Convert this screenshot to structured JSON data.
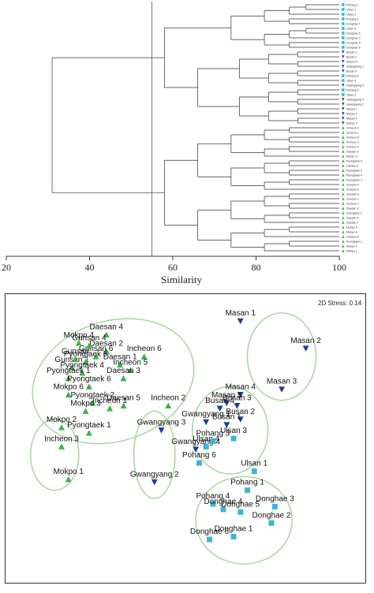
{
  "dendrogram": {
    "xlabel": "Similarity",
    "xticks": [
      20,
      40,
      60,
      80,
      100
    ],
    "xlim": [
      20,
      100
    ],
    "cut_line": 55,
    "leaves": [
      {
        "label": "Pohang 1",
        "group": "Pohang"
      },
      {
        "label": "Ulsan 1",
        "group": "Ulsan"
      },
      {
        "label": "Ulsan 2",
        "group": "Ulsan"
      },
      {
        "label": "Pohang 2",
        "group": "Pohang"
      },
      {
        "label": "Donghae 1",
        "group": "Donghae"
      },
      {
        "label": "Ulsan 3",
        "group": "Ulsan"
      },
      {
        "label": "Donghae 5",
        "group": "Donghae"
      },
      {
        "label": "Donghae 3",
        "group": "Donghae"
      },
      {
        "label": "Donghae 4",
        "group": "Donghae"
      },
      {
        "label": "Donghae 6",
        "group": "Donghae"
      },
      {
        "label": "Busan 1",
        "group": "Busan"
      },
      {
        "label": "Busan 2",
        "group": "Busan"
      },
      {
        "label": "Masan 5",
        "group": "Masan"
      },
      {
        "label": "Gwangyang 1",
        "group": "Gwangyang"
      },
      {
        "label": "Busan 4",
        "group": "Busan"
      },
      {
        "label": "Pohang 6",
        "group": "Pohang"
      },
      {
        "label": "Ulsan 4",
        "group": "Ulsan"
      },
      {
        "label": "Gwangyang 4",
        "group": "Gwangyang"
      },
      {
        "label": "Pohang 3",
        "group": "Pohang"
      },
      {
        "label": "Ulsan 3",
        "group": "Ulsan"
      },
      {
        "label": "Gwangyang 3",
        "group": "Gwangyang"
      },
      {
        "label": "Gwangyang 2",
        "group": "Gwangyang"
      },
      {
        "label": "Masan 1",
        "group": "Masan"
      },
      {
        "label": "Masan 2",
        "group": "Masan"
      },
      {
        "label": "Masan 4",
        "group": "Masan"
      },
      {
        "label": "Masan 3",
        "group": "Masan"
      },
      {
        "label": "Incheon 2",
        "group": "Incheon"
      },
      {
        "label": "Incheon 1",
        "group": "Incheon"
      },
      {
        "label": "Incheon 6",
        "group": "Incheon"
      },
      {
        "label": "Incheon 4",
        "group": "Incheon"
      },
      {
        "label": "Incheon 5",
        "group": "Incheon"
      },
      {
        "label": "Daesan 5",
        "group": "Daesan"
      },
      {
        "label": "Mokpo 3",
        "group": "Mokpo"
      },
      {
        "label": "Pyongtaek 6",
        "group": "Pyongtaek"
      },
      {
        "label": "Daesan 6",
        "group": "Daesan"
      },
      {
        "label": "Pyongtaek 5",
        "group": "Pyongtaek"
      },
      {
        "label": "Pyongtaek 4",
        "group": "Pyongtaek"
      },
      {
        "label": "Pyongtaek 3",
        "group": "Pyongtaek"
      },
      {
        "label": "Gunsan 4",
        "group": "Gunsan"
      },
      {
        "label": "Gunsan 3",
        "group": "Gunsan"
      },
      {
        "label": "Gunsan 5",
        "group": "Gunsan"
      },
      {
        "label": "Gunsan 1",
        "group": "Gunsan"
      },
      {
        "label": "Gunsan 2",
        "group": "Gunsan"
      },
      {
        "label": "Daesan 3",
        "group": "Daesan"
      },
      {
        "label": "Pyongtaek 2",
        "group": "Pyongtaek"
      },
      {
        "label": "Daesan 4",
        "group": "Daesan"
      },
      {
        "label": "Daesan 2",
        "group": "Daesan"
      },
      {
        "label": "Mokpo 4",
        "group": "Mokpo"
      },
      {
        "label": "Mokpo 6",
        "group": "Mokpo"
      },
      {
        "label": "Gunsan 6",
        "group": "Gunsan"
      },
      {
        "label": "Pyongtaek 1",
        "group": "Pyongtaek"
      },
      {
        "label": "Mokpo 2",
        "group": "Mokpo"
      },
      {
        "label": "Mokpo 1",
        "group": "Mokpo"
      }
    ]
  },
  "mds": {
    "stress_label": "2D Stress: 0.14",
    "colors": {
      "north": "#3cb34a",
      "south": "#1f3d99",
      "east": "#3ab7d4",
      "ellipse": "#9fd59a"
    },
    "points": [
      {
        "label": "Masan 1",
        "x": 0.66,
        "y": 0.93,
        "shape": "south"
      },
      {
        "label": "Masan 2",
        "x": 0.85,
        "y": 0.83,
        "shape": "south"
      },
      {
        "label": "Masan 3",
        "x": 0.78,
        "y": 0.68,
        "shape": "south"
      },
      {
        "label": "Masan 4",
        "x": 0.66,
        "y": 0.66,
        "shape": "south"
      },
      {
        "label": "Masan 5",
        "x": 0.62,
        "y": 0.63,
        "shape": "south"
      },
      {
        "label": "Busan 3",
        "x": 0.65,
        "y": 0.62,
        "shape": "south"
      },
      {
        "label": "Busan 4",
        "x": 0.6,
        "y": 0.61,
        "shape": "south"
      },
      {
        "label": "Busan 2",
        "x": 0.66,
        "y": 0.57,
        "shape": "south"
      },
      {
        "label": "Busan 1",
        "x": 0.62,
        "y": 0.55,
        "shape": "south"
      },
      {
        "label": "Gwangyang 1",
        "x": 0.56,
        "y": 0.56,
        "shape": "south"
      },
      {
        "label": "Gwangyang 3",
        "x": 0.43,
        "y": 0.53,
        "shape": "south"
      },
      {
        "label": "Gwangyang 4",
        "x": 0.53,
        "y": 0.46,
        "shape": "south"
      },
      {
        "label": "Gwangyang 2",
        "x": 0.41,
        "y": 0.34,
        "shape": "south"
      },
      {
        "label": "Ulsan 3",
        "x": 0.64,
        "y": 0.5,
        "shape": "east"
      },
      {
        "label": "Ulsan 4",
        "x": 0.56,
        "y": 0.47,
        "shape": "east"
      },
      {
        "label": "Pohang 3",
        "x": 0.58,
        "y": 0.49,
        "shape": "east"
      },
      {
        "label": "Pohang 6",
        "x": 0.54,
        "y": 0.41,
        "shape": "east"
      },
      {
        "label": "Ulsan 1",
        "x": 0.7,
        "y": 0.38,
        "shape": "east"
      },
      {
        "label": "Pohang 1",
        "x": 0.68,
        "y": 0.31,
        "shape": "east"
      },
      {
        "label": "Pohang 4",
        "x": 0.58,
        "y": 0.26,
        "shape": "east"
      },
      {
        "label": "Donghae 4",
        "x": 0.61,
        "y": 0.24,
        "shape": "east"
      },
      {
        "label": "Donghae 5",
        "x": 0.66,
        "y": 0.23,
        "shape": "east"
      },
      {
        "label": "Donghae 3",
        "x": 0.76,
        "y": 0.25,
        "shape": "east"
      },
      {
        "label": "Donghae 2",
        "x": 0.75,
        "y": 0.19,
        "shape": "east"
      },
      {
        "label": "Donghae 1",
        "x": 0.64,
        "y": 0.14,
        "shape": "east"
      },
      {
        "label": "Donghae 6",
        "x": 0.57,
        "y": 0.13,
        "shape": "east"
      },
      {
        "label": "Daesan 4",
        "x": 0.27,
        "y": 0.88,
        "shape": "north"
      },
      {
        "label": "Incheon 6",
        "x": 0.38,
        "y": 0.8,
        "shape": "north"
      },
      {
        "label": "Daesan 2",
        "x": 0.27,
        "y": 0.82,
        "shape": "north"
      },
      {
        "label": "Daesan 1",
        "x": 0.31,
        "y": 0.77,
        "shape": "north"
      },
      {
        "label": "Incheon 5",
        "x": 0.34,
        "y": 0.75,
        "shape": "north"
      },
      {
        "label": "Daesan 3",
        "x": 0.32,
        "y": 0.72,
        "shape": "north"
      },
      {
        "label": "Incheon 2",
        "x": 0.45,
        "y": 0.62,
        "shape": "north"
      },
      {
        "label": "Daesan 5",
        "x": 0.32,
        "y": 0.62,
        "shape": "north"
      },
      {
        "label": "Incheon 1",
        "x": 0.28,
        "y": 0.61,
        "shape": "north"
      },
      {
        "label": "Gunsan 6",
        "x": 0.24,
        "y": 0.8,
        "shape": "north"
      },
      {
        "label": "Gunsan 4",
        "x": 0.22,
        "y": 0.84,
        "shape": "north"
      },
      {
        "label": "Gunsan 1",
        "x": 0.17,
        "y": 0.76,
        "shape": "north"
      },
      {
        "label": "Gunsan",
        "x": 0.18,
        "y": 0.79,
        "shape": "north"
      },
      {
        "label": "Pyongtaek 5",
        "x": 0.21,
        "y": 0.78,
        "shape": "north"
      },
      {
        "label": "Pyongtaek 4",
        "x": 0.2,
        "y": 0.74,
        "shape": "north"
      },
      {
        "label": "Pyongtaek 1",
        "x": 0.16,
        "y": 0.72,
        "shape": "north"
      },
      {
        "label": "Pyongtaek 6",
        "x": 0.22,
        "y": 0.69,
        "shape": "north"
      },
      {
        "label": "Pyongtaek 2",
        "x": 0.23,
        "y": 0.63,
        "shape": "north"
      },
      {
        "label": "Mokpo 4",
        "x": 0.19,
        "y": 0.85,
        "shape": "north"
      },
      {
        "label": "Mokpo 6",
        "x": 0.16,
        "y": 0.66,
        "shape": "north"
      },
      {
        "label": "Mokpo 3",
        "x": 0.21,
        "y": 0.6,
        "shape": "north"
      },
      {
        "label": "Mokpo 2",
        "x": 0.14,
        "y": 0.54,
        "shape": "north"
      },
      {
        "label": "Pyongtaek 1",
        "x": 0.22,
        "y": 0.52,
        "shape": "north"
      },
      {
        "label": "Incheon 3",
        "x": 0.14,
        "y": 0.47,
        "shape": "north"
      },
      {
        "label": "Mokpo 1",
        "x": 0.16,
        "y": 0.35,
        "shape": "north"
      }
    ]
  }
}
